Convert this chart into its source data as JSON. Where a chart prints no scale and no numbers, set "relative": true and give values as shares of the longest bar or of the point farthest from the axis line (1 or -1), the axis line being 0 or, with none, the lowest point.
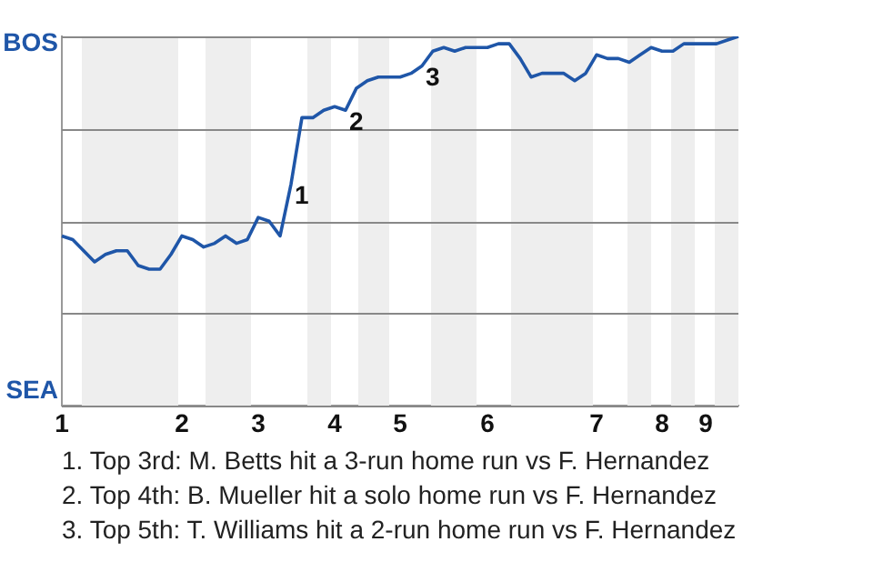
{
  "chart_data": {
    "type": "line",
    "relative": true,
    "categories": [
      "1",
      null,
      null,
      null,
      null,
      null,
      null,
      null,
      null,
      null,
      null,
      "2",
      null,
      null,
      null,
      null,
      null,
      null,
      "3",
      null,
      null,
      null,
      null,
      null,
      null,
      "4",
      null,
      null,
      null,
      null,
      null,
      "5",
      null,
      null,
      null,
      null,
      null,
      null,
      null,
      "6",
      null,
      null,
      null,
      null,
      null,
      null,
      null,
      null,
      null,
      "7",
      null,
      null,
      null,
      null,
      null,
      "8",
      null,
      null,
      null,
      "9",
      null,
      null,
      null
    ],
    "series": [
      {
        "color": "#1f56a8",
        "values": [
          0.46,
          0.45,
          0.42,
          0.39,
          0.41,
          0.42,
          0.42,
          0.38,
          0.37,
          0.37,
          0.41,
          0.46,
          0.45,
          0.43,
          0.44,
          0.46,
          0.44,
          0.45,
          0.51,
          0.5,
          0.46,
          0.6,
          0.78,
          0.78,
          0.8,
          0.81,
          0.8,
          0.86,
          0.88,
          0.89,
          0.89,
          0.89,
          0.9,
          0.92,
          0.96,
          0.97,
          0.96,
          0.97,
          0.97,
          0.97,
          0.98,
          0.98,
          0.94,
          0.89,
          0.9,
          0.9,
          0.9,
          0.88,
          0.9,
          0.95,
          0.94,
          0.94,
          0.93,
          0.95,
          0.97,
          0.96,
          0.96,
          0.98,
          0.98,
          0.98,
          0.98,
          0.99,
          1
        ]
      }
    ],
    "grid": "y",
    "legend": false,
    "marker": "none",
    "line_style": "solid",
    "annotations": [
      "BOS",
      "SEA",
      {
        "text": "1",
        "y": 0.6
      },
      {
        "text": "2",
        "y": 0.8
      },
      {
        "text": "3",
        "y": 0.92
      },
      "1. Top 3rd: M. Betts hit a 3-run home run vs F. Hernandez",
      "2. Top 4th: B. Mueller hit a solo home run vs F. Hernandez",
      "3. Top 5th: T. Williams hit a 2-run home run vs F. Hernandez"
    ]
  }
}
